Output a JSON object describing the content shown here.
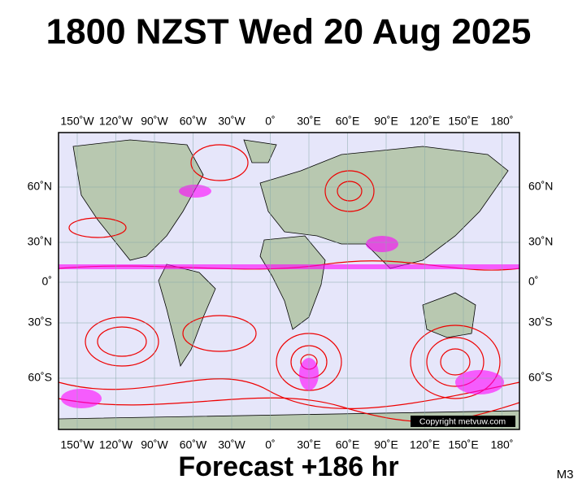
{
  "header": {
    "title": "1800 NZST Wed 20 Aug 2025"
  },
  "map": {
    "lon_labels": [
      "150˚W",
      "120˚W",
      "90˚W",
      "60˚W",
      "30˚W",
      "0˚",
      "30˚E",
      "60˚E",
      "90˚E",
      "120˚E",
      "150˚E",
      "180˚"
    ],
    "lat_labels": [
      "60˚N",
      "30˚N",
      "0˚",
      "30˚S",
      "60˚S"
    ],
    "copyright": "Copyright metvuw.com"
  },
  "footer": {
    "forecast": "Forecast +186 hr",
    "model": "M3"
  }
}
